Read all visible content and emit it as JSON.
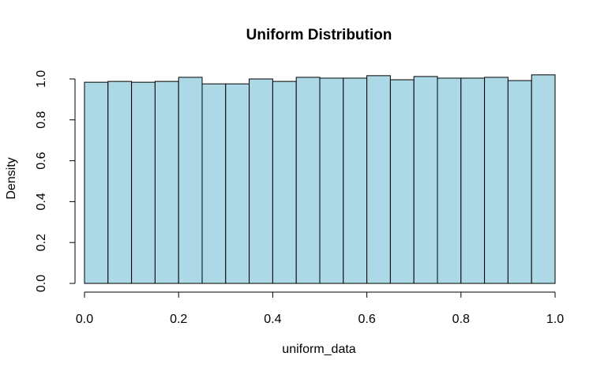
{
  "chart_data": {
    "type": "bar",
    "title": "Uniform Distribution",
    "xlabel": "uniform_data",
    "ylabel": "Density",
    "bin_edges": [
      0.0,
      0.05,
      0.1,
      0.15,
      0.2,
      0.25,
      0.3,
      0.35,
      0.4,
      0.45,
      0.5,
      0.55,
      0.6,
      0.65,
      0.7,
      0.75,
      0.8,
      0.85,
      0.9,
      0.95,
      1.0
    ],
    "values": [
      0.984,
      0.988,
      0.984,
      0.988,
      1.008,
      0.976,
      0.976,
      1.0,
      0.988,
      1.008,
      1.004,
      1.004,
      1.016,
      0.996,
      1.012,
      1.004,
      1.004,
      1.008,
      0.992,
      1.02
    ],
    "xlim": [
      0.0,
      1.0
    ],
    "ylim": [
      0.0,
      1.0
    ],
    "xticks": [
      "0.0",
      "0.2",
      "0.4",
      "0.6",
      "0.8",
      "1.0"
    ],
    "yticks": [
      "0.0",
      "0.2",
      "0.4",
      "0.6",
      "0.8",
      "1.0"
    ],
    "bar_color": "#add8e6",
    "border_color": "#000000",
    "grid": false,
    "legend": "none"
  }
}
